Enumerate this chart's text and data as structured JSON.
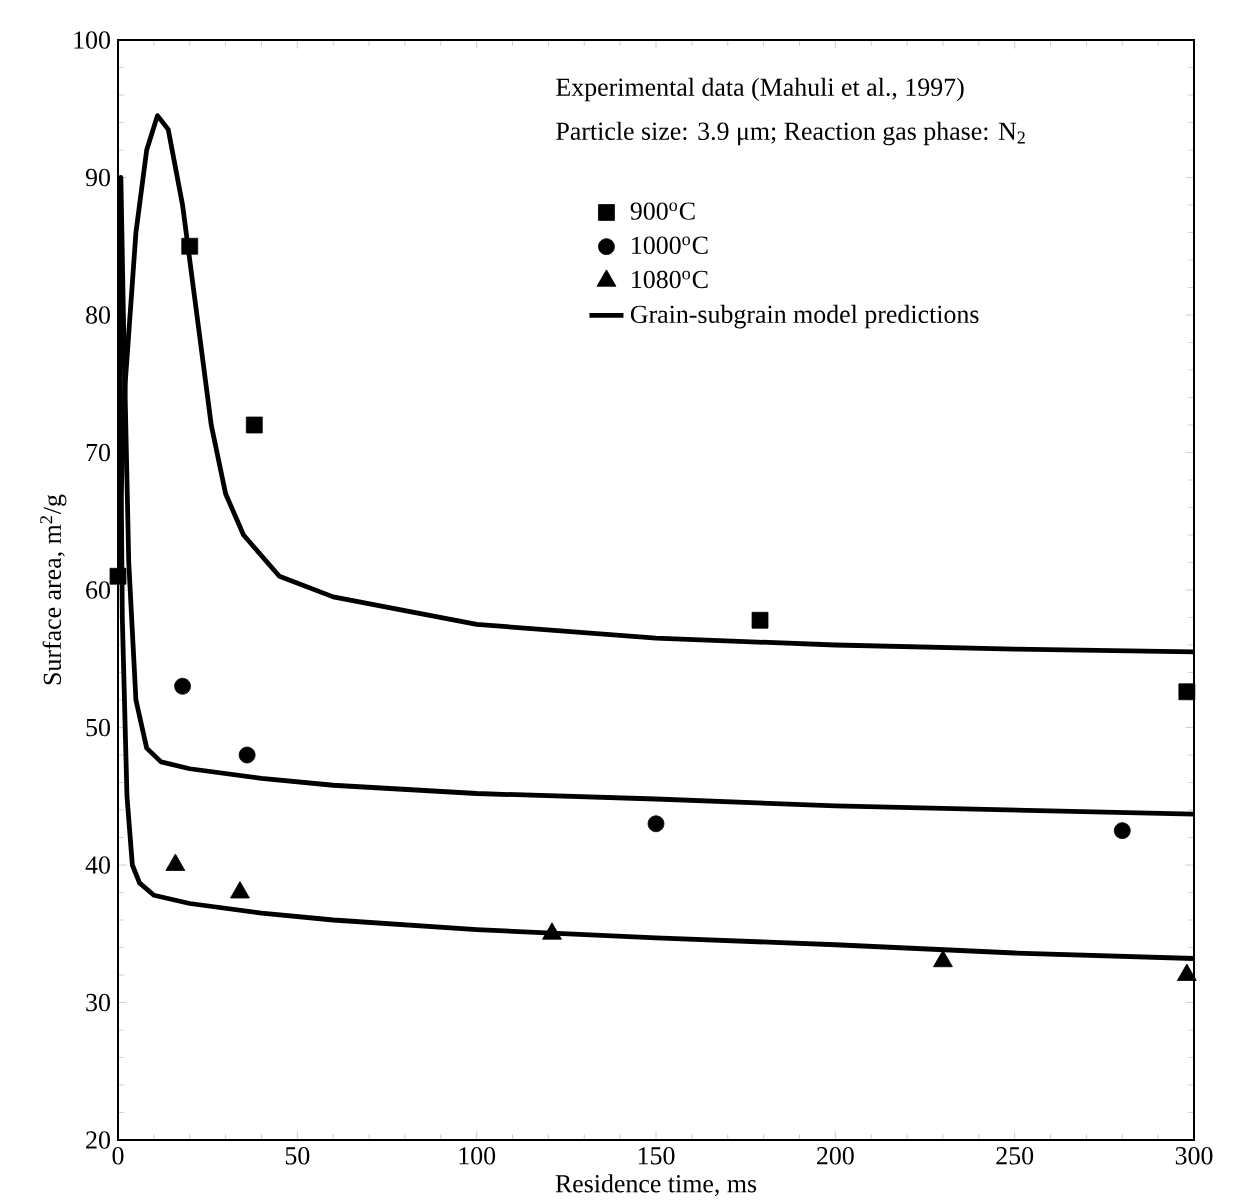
{
  "chart_data": {
    "type": "scatter",
    "xlabel": "Residence time, ms",
    "ylabel": "Surface area, m$^{2}$/g",
    "xlim": [
      0,
      300
    ],
    "ylim": [
      20,
      100
    ],
    "xticks": [
      0,
      50,
      100,
      150,
      200,
      250,
      300
    ],
    "yticks": [
      20,
      30,
      40,
      50,
      60,
      70,
      80,
      90,
      100
    ],
    "legend": "top right",
    "grid": false,
    "annotations": [
      "Experimental data (Mahuli et al., 1997)",
      "Particle size: 3.9 μm;  Reaction gas phase: N$_{2}$"
    ],
    "series": [
      {
        "name": "900$^{o}$C",
        "marker": "square",
        "color": "#000000",
        "x": [
          0,
          20,
          38,
          179,
          298
        ],
        "values": [
          61,
          85,
          72,
          57.8,
          52.6
        ]
      },
      {
        "name": "1000$^{o}$C",
        "marker": "circle",
        "color": "#000000",
        "x": [
          18,
          36,
          150,
          280
        ],
        "values": [
          53,
          48,
          43,
          42.5
        ]
      },
      {
        "name": "1080$^{o}$C",
        "marker": "triangle",
        "color": "#000000",
        "x": [
          16,
          34,
          121,
          230,
          298
        ],
        "values": [
          40,
          38,
          35,
          33,
          32
        ]
      },
      {
        "name": "Grain-subgrain model predictions",
        "type": "line",
        "marker": "none",
        "color": "#000000",
        "x": [
          0,
          2,
          5,
          8,
          11,
          14,
          18,
          22,
          26,
          30,
          35,
          45,
          60,
          80,
          100,
          150,
          200,
          250,
          300
        ],
        "values": [
          61,
          75,
          86,
          92,
          94.5,
          93.5,
          88,
          80,
          72,
          67,
          64,
          61,
          59.5,
          58.5,
          57.5,
          56.5,
          56,
          55.7,
          55.5
        ]
      },
      {
        "type": "line",
        "marker": "none",
        "color": "#000000",
        "x": [
          0,
          0.8,
          1.5,
          3,
          5,
          8,
          12,
          20,
          40,
          60,
          100,
          150,
          200,
          250,
          300
        ],
        "values": [
          61,
          90,
          80,
          62,
          52,
          48.5,
          47.5,
          47,
          46.3,
          45.8,
          45.2,
          44.8,
          44.3,
          44,
          43.7
        ]
      },
      {
        "type": "line",
        "marker": "none",
        "color": "#000000",
        "x": [
          0,
          0.5,
          1.2,
          2.5,
          4,
          6,
          10,
          20,
          40,
          60,
          100,
          150,
          200,
          250,
          300
        ],
        "values": [
          61,
          80,
          58,
          45,
          40,
          38.7,
          37.8,
          37.2,
          36.5,
          36,
          35.3,
          34.7,
          34.2,
          33.6,
          33.2
        ]
      }
    ]
  }
}
